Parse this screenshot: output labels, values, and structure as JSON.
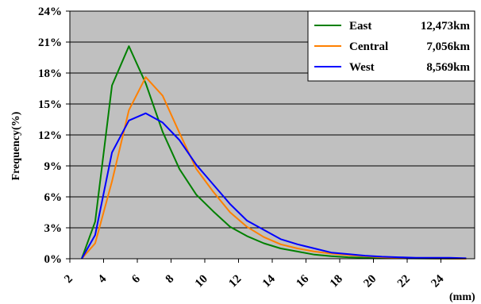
{
  "chart_data": {
    "type": "line",
    "title": "",
    "xlabel": "(mm)",
    "ylabel": "Frequency(%)",
    "xlim": [
      2,
      26
    ],
    "ylim": [
      0,
      24
    ],
    "x_ticks": [
      2,
      4,
      6,
      8,
      10,
      12,
      14,
      16,
      18,
      20,
      22,
      24
    ],
    "y_ticks": [
      0,
      3,
      6,
      9,
      12,
      15,
      18,
      21,
      24
    ],
    "y_tick_suffix": "%",
    "grid": "horizontal",
    "plot_background": "#c0c0c0",
    "legend_position": "top-right",
    "series": [
      {
        "name": "East",
        "total": "12,473km",
        "color": "#008000",
        "x": [
          2.7,
          3.5,
          4.5,
          5.5,
          6.5,
          7.5,
          8.5,
          9.5,
          10.5,
          11.5,
          12.5,
          13.5,
          14.5,
          15.5,
          16.5,
          17.5,
          18.5,
          19.5,
          20.5,
          21.5,
          22.5,
          23.5,
          24.5,
          25.5
        ],
        "values": [
          0,
          3.6,
          16.8,
          20.6,
          17.0,
          12.3,
          8.7,
          6.2,
          4.6,
          3.1,
          2.2,
          1.5,
          1.0,
          0.7,
          0.4,
          0.25,
          0.15,
          0.1,
          0.05,
          0.05,
          0.03,
          0.02,
          0.01,
          0
        ]
      },
      {
        "name": "Central",
        "total": "7,056km",
        "color": "#ff8000",
        "x": [
          2.7,
          3.5,
          4.5,
          5.5,
          6.5,
          7.5,
          8.5,
          9.5,
          10.5,
          11.5,
          12.5,
          13.5,
          14.5,
          15.5,
          16.5,
          17.5,
          18.5,
          19.5,
          20.5,
          21.5,
          22.5,
          23.5,
          24.5,
          25.5
        ],
        "values": [
          0,
          1.5,
          7.5,
          14.4,
          17.6,
          15.8,
          12.2,
          8.7,
          6.5,
          4.5,
          3.1,
          2.1,
          1.4,
          1.0,
          0.7,
          0.5,
          0.35,
          0.25,
          0.15,
          0.1,
          0.05,
          0.03,
          0.02,
          0
        ]
      },
      {
        "name": "West",
        "total": "8,569km",
        "color": "#0000ff",
        "x": [
          2.7,
          3.5,
          4.5,
          5.5,
          6.5,
          7.5,
          8.5,
          9.5,
          10.5,
          11.5,
          12.5,
          13.5,
          14.5,
          15.5,
          16.5,
          17.5,
          18.5,
          19.5,
          20.5,
          21.5,
          22.5,
          23.5,
          24.5,
          25.5
        ],
        "values": [
          0,
          2.3,
          10.3,
          13.4,
          14.1,
          13.2,
          11.5,
          9.1,
          7.2,
          5.3,
          3.7,
          2.8,
          1.9,
          1.4,
          1.0,
          0.6,
          0.45,
          0.3,
          0.2,
          0.15,
          0.1,
          0.1,
          0.1,
          0.05
        ]
      }
    ]
  }
}
